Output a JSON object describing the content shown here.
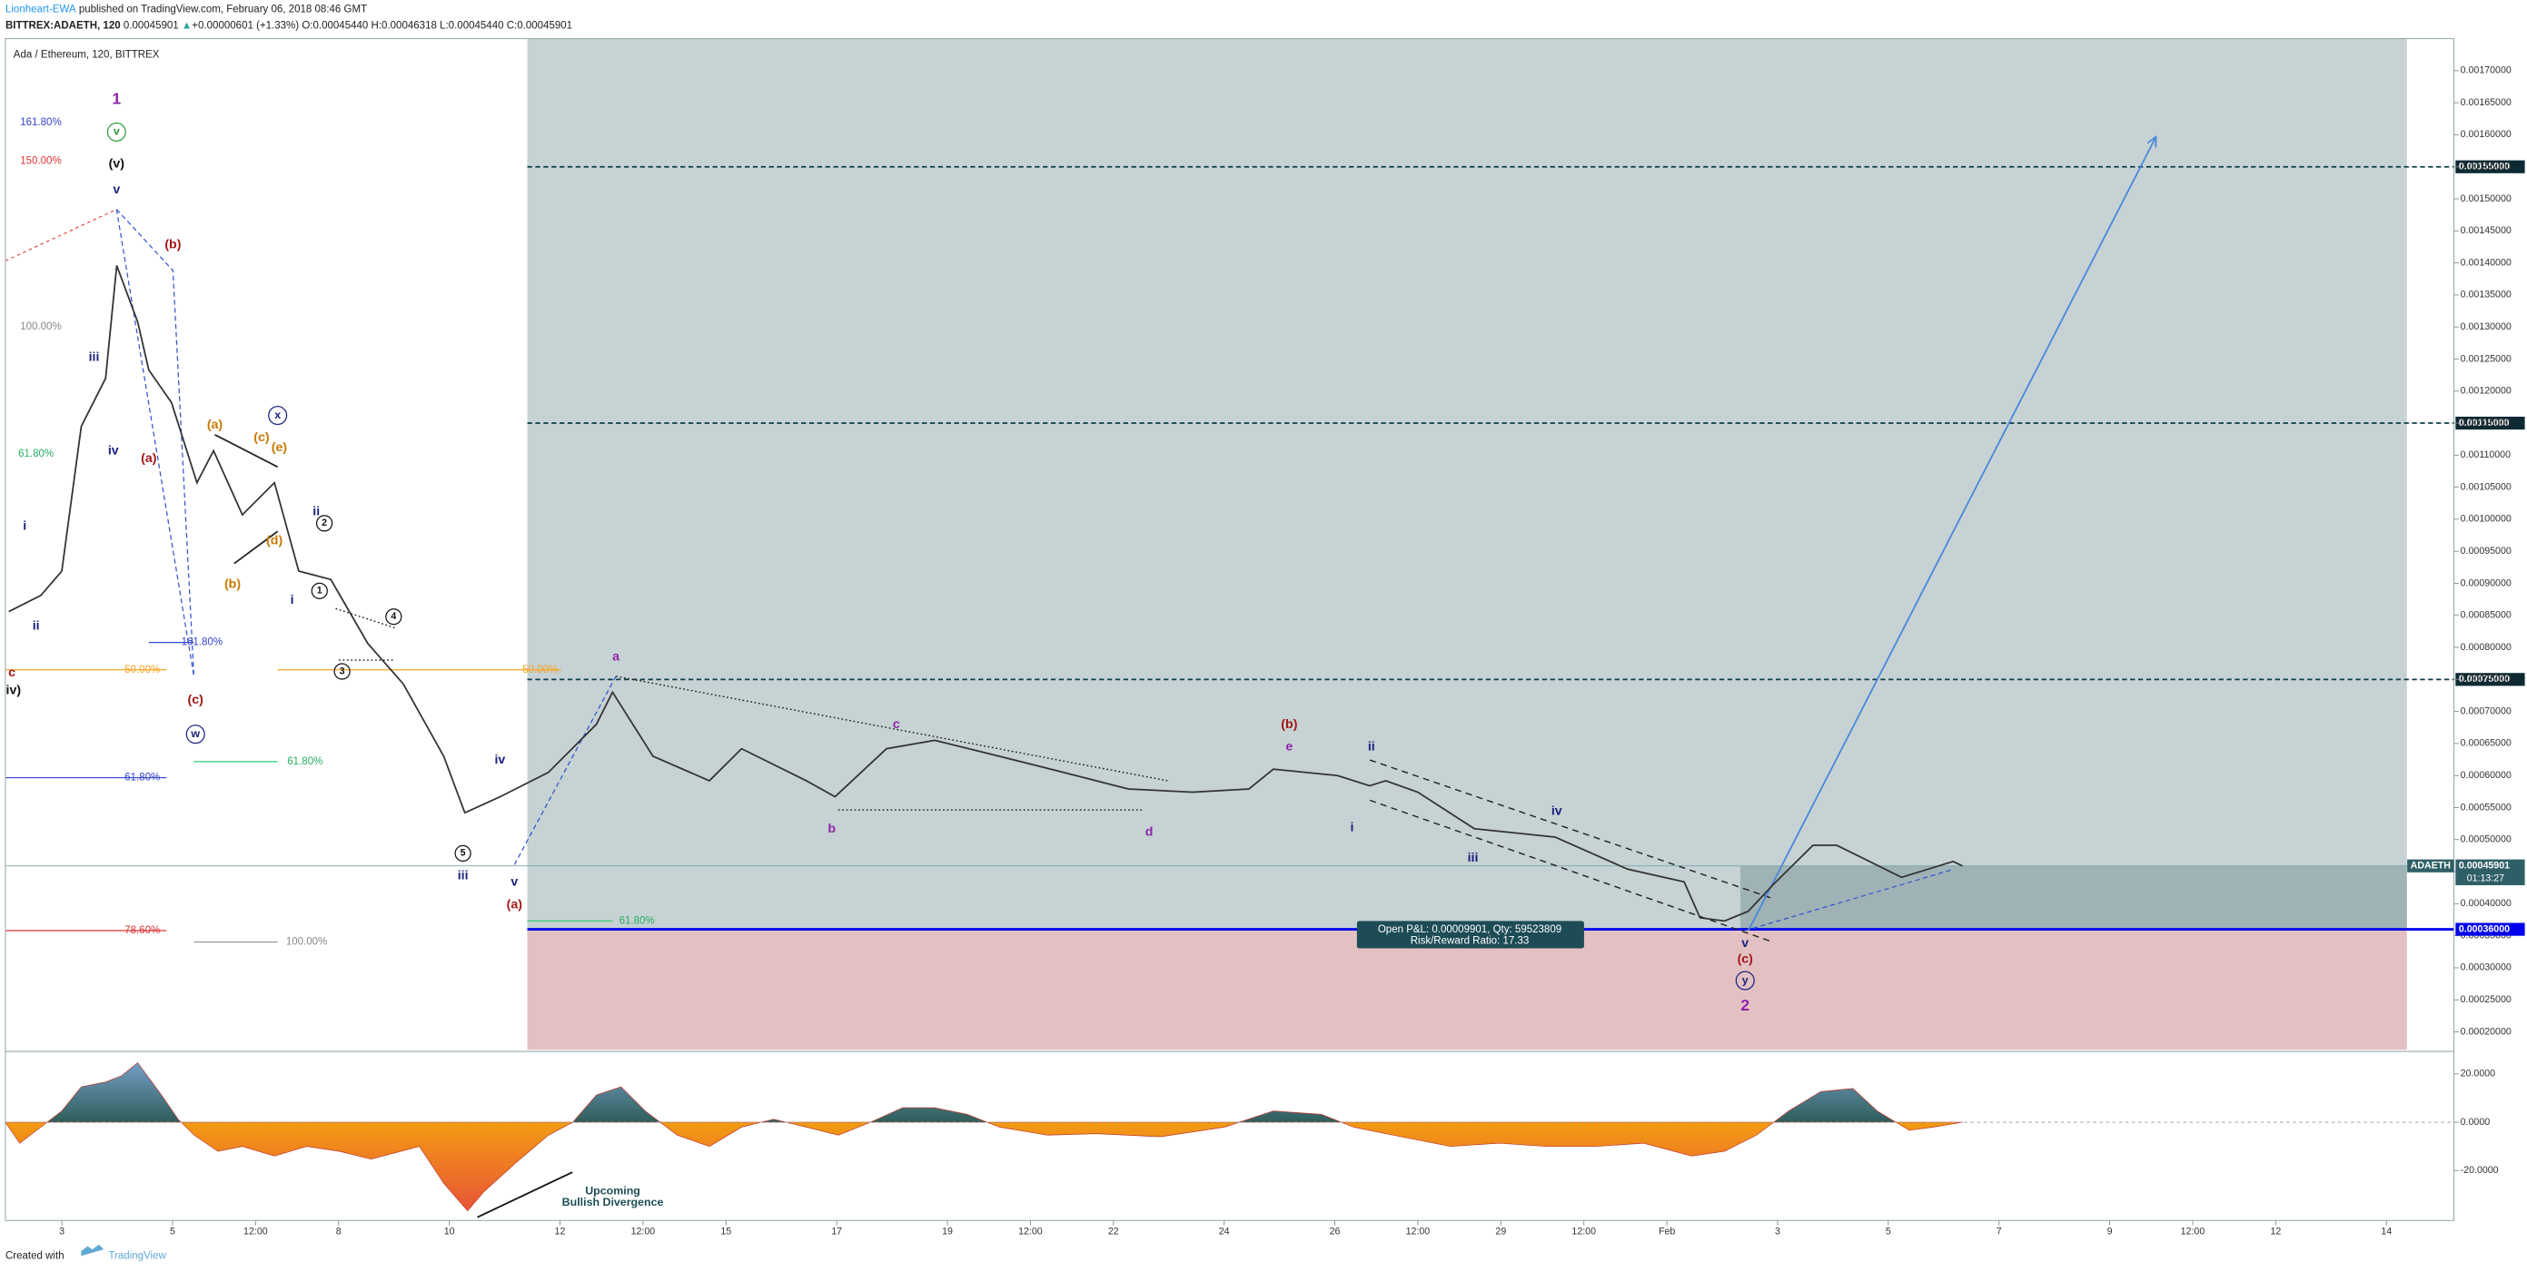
{
  "header": {
    "author": "Lionheart-EWA",
    "published": "published on TradingView.com, February 06, 2018 08:46 GMT",
    "symbol": "BITTREX:ADAETH, 120",
    "last": "0.00045901",
    "arrow": "▲",
    "change": "+0.00000601 (+1.33%)",
    "ohlc": "O:0.00045440 H:0.00046318 L:0.00045440 C:0.00045901"
  },
  "chart_data": {
    "type": "line",
    "title": "Ada / Ethereum, 120, BITTREX",
    "x": [
      2.04,
      2.62,
      3.0,
      3.35,
      3.79,
      3.99,
      4.37,
      4.57,
      4.98,
      5.44,
      5.74,
      6.26,
      6.84,
      7.28,
      7.86,
      8.53,
      9.17,
      9.9,
      10.28,
      10.92,
      11.79,
      12.66,
      12.95,
      13.68,
      14.7,
      15.28,
      16.45,
      16.97,
      17.9,
      18.77,
      19.94,
      21.1,
      22.27,
      23.43,
      24.45,
      24.89,
      26.05,
      26.63,
      26.92,
      27.5,
      28.52,
      29.98,
      31.29,
      32.31,
      32.6,
      33.04,
      33.47,
      33.91,
      34.64,
      35.07,
      36.24,
      37.17,
      37.34
    ],
    "series": [
      {
        "name": "ADAETH",
        "color": "#333333",
        "values": [
          0.000856,
          0.000881,
          0.000919,
          0.001145,
          0.00122,
          0.001396,
          0.001308,
          0.001233,
          0.001182,
          0.001057,
          0.001107,
          0.001007,
          0.001057,
          0.000919,
          0.000906,
          0.000806,
          0.000743,
          0.00063,
          0.000542,
          0.000567,
          0.000605,
          0.00068,
          0.00073,
          0.00063,
          0.000592,
          0.000642,
          0.000592,
          0.000567,
          0.000642,
          0.000655,
          0.00063,
          0.000605,
          0.000579,
          0.000574,
          0.000579,
          0.00061,
          0.0006,
          0.000584,
          0.000592,
          0.000574,
          0.000517,
          0.000504,
          0.000454,
          0.000434,
          0.000378,
          0.000373,
          0.000388,
          0.000429,
          0.000491,
          0.000491,
          0.000441,
          0.000466,
          0.00045901
        ]
      }
    ],
    "xlim": [
      1.98,
      46.22
    ],
    "xticks": [
      3,
      5,
      {
        "value": 6.5,
        "label": "12:00"
      },
      8,
      10,
      12,
      {
        "value": 13.5,
        "label": "12:00"
      },
      15,
      17,
      19,
      {
        "value": 20.5,
        "label": "12:00"
      },
      22,
      24,
      26,
      {
        "value": 27.5,
        "label": "12:00"
      },
      29,
      {
        "value": 30.5,
        "label": "12:00"
      },
      {
        "value": 32,
        "label": "Feb"
      },
      {
        "value": 34,
        "label": "3"
      },
      {
        "value": 36,
        "label": "5"
      },
      {
        "value": 38,
        "label": "7"
      },
      {
        "value": 40,
        "label": "9"
      },
      {
        "value": 41.5,
        "label": "12:00"
      },
      {
        "value": 43,
        "label": "12"
      },
      {
        "value": 45,
        "label": "14"
      }
    ],
    "ylim": [
      0.000172,
      0.00175
    ],
    "yticks": [
      {
        "value": 0.0002,
        "label": "0.00020000"
      },
      {
        "value": 0.00025,
        "label": "0.00025000"
      },
      {
        "value": 0.0003,
        "label": "0.00030000"
      },
      {
        "value": 0.00035,
        "label": "0.00035000"
      },
      {
        "value": 0.0004,
        "label": "0.00040000"
      },
      {
        "value": 0.00045,
        "label": "0.00045000"
      },
      {
        "value": 0.0005,
        "label": "0.00050000"
      },
      {
        "value": 0.00055,
        "label": "0.00055000"
      },
      {
        "value": 0.0006,
        "label": "0.00060000"
      },
      {
        "value": 0.00065,
        "label": "0.00065000"
      },
      {
        "value": 0.0007,
        "label": "0.00070000"
      },
      {
        "value": 0.00075,
        "label": "0.00075000"
      },
      {
        "value": 0.0008,
        "label": "0.00080000"
      },
      {
        "value": 0.00085,
        "label": "0.00085000"
      },
      {
        "value": 0.0009,
        "label": "0.00090000"
      },
      {
        "value": 0.00095,
        "label": "0.00095000"
      },
      {
        "value": 0.001,
        "label": "0.00100000"
      },
      {
        "value": 0.00105,
        "label": "0.00105000"
      },
      {
        "value": 0.0011,
        "label": "0.00110000"
      },
      {
        "value": 0.00115,
        "label": "0.00115000"
      },
      {
        "value": 0.0012,
        "label": "0.00120000"
      },
      {
        "value": 0.00125,
        "label": "0.00125000"
      },
      {
        "value": 0.0013,
        "label": "0.00130000"
      },
      {
        "value": 0.00135,
        "label": "0.00135000"
      },
      {
        "value": 0.0014,
        "label": "0.00140000"
      },
      {
        "value": 0.00145,
        "label": "0.00145000"
      },
      {
        "value": 0.0015,
        "label": "0.00150000"
      },
      {
        "value": 0.00155,
        "label": "0.00155000"
      },
      {
        "value": 0.0016,
        "label": "0.00160000"
      },
      {
        "value": 0.00165,
        "label": "0.00165000"
      },
      {
        "value": 0.0017,
        "label": "0.00170000"
      }
    ],
    "levels": [
      {
        "value": 0.00155,
        "label": "0.00155000"
      },
      {
        "value": 0.00115,
        "label": "0.00115000"
      },
      {
        "value": 0.00075,
        "label": "0.00075000"
      }
    ],
    "current": 0.00045901,
    "countdown": "01:13:27",
    "position": {
      "start": 11.41,
      "end": 45.37,
      "target": 0.00175,
      "entry": {
        "value": 0.00036,
        "label": "0.00036000"
      },
      "stop": 0.000172,
      "pnl_text": "Open P&L: 0.00009901, Qty: 59523809",
      "ratio_text": "Risk/Reward Ratio: 17.33"
    },
    "annotations": [
      "1",
      "v",
      "(v)",
      "v",
      "(b)",
      "iii",
      "iv",
      "(a)",
      "i",
      "ii",
      "c",
      "iv)",
      "(a)",
      "(c)",
      "(e)",
      "x",
      "(d)",
      "(b)",
      "ii",
      "2",
      "i",
      "1",
      "4",
      "3",
      "(c)",
      "w",
      "iv",
      "5",
      "iii",
      "v",
      "(a)",
      "a",
      "c",
      "b",
      "d",
      "(b)",
      "e",
      "ii",
      "i",
      "iii",
      "iv",
      "v",
      "(c)",
      "y",
      "2"
    ],
    "fib_labels": [
      "161.80%",
      "150.00%",
      "100.00%",
      "61.80%",
      "50.00%",
      "61.80%",
      "78.60%",
      "161.80%",
      "61.80%",
      "100.00%",
      "50.00%",
      "61.80%"
    ],
    "indicator": {
      "type": "area",
      "x": [
        1.98,
        2.24,
        2.62,
        3,
        3.35,
        3.79,
        4.08,
        4.37,
        4.8,
        5.1,
        5.39,
        5.82,
        6.26,
        6.84,
        7.42,
        8.01,
        8.59,
        9.46,
        9.9,
        10.33,
        10.63,
        11.21,
        11.79,
        12.23,
        12.66,
        13.1,
        13.54,
        14.12,
        14.7,
        15.28,
        15.86,
        16.45,
        17.03,
        17.61,
        18.19,
        18.77,
        19.36,
        19.94,
        20.81,
        21.68,
        22.85,
        24.01,
        24.89,
        25.76,
        26.34,
        26.92,
        28.09,
        28.96,
        29.83,
        30.71,
        31.58,
        32.45,
        33.04,
        33.62,
        34.2,
        34.78,
        35.36,
        35.8,
        36.38,
        36.82,
        37.34
      ],
      "values": [
        0,
        -8.7,
        -2,
        4.7,
        14.7,
        16.7,
        19.3,
        24.7,
        11.3,
        1.3,
        -5.3,
        -12,
        -10,
        -14,
        -10,
        -12,
        -15.3,
        -10,
        -25.3,
        -36.7,
        -28.7,
        -16.7,
        -5.3,
        0,
        11.3,
        14.7,
        4.7,
        -5.3,
        -10,
        -2,
        1.3,
        -2,
        -5.3,
        0,
        6,
        6,
        3.3,
        -2,
        -5.3,
        -4.7,
        -6,
        -2,
        4.7,
        3.3,
        -2,
        -4.7,
        -10,
        -8.7,
        -10,
        -10,
        -8.7,
        -14,
        -12,
        -5.3,
        4.7,
        12.7,
        14,
        4.7,
        -3.3,
        -2,
        0
      ],
      "ylim": [
        -40.67,
        28.67
      ],
      "yticks": [
        {
          "value": 20,
          "label": "20.0000"
        },
        {
          "value": 0,
          "label": "0.0000"
        },
        {
          "value": -20,
          "label": "-20.0000"
        }
      ],
      "note": [
        "Upcoming",
        "Bullish Divergence"
      ]
    }
  },
  "footer": {
    "created": "Created with",
    "brand": "TradingView"
  }
}
